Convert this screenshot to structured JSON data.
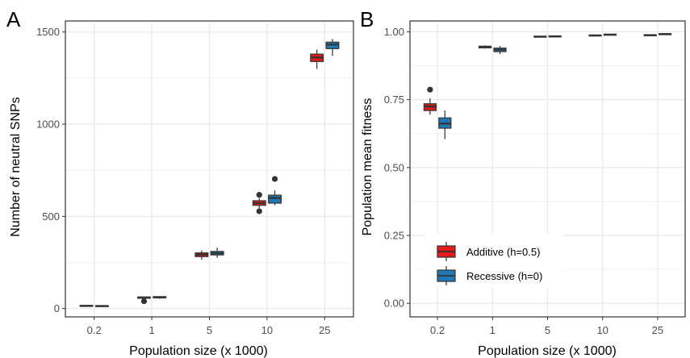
{
  "colors": {
    "additive": "#e41a1c",
    "recessive": "#1f78b4",
    "outline": "#333333",
    "grid": "#ebebeb",
    "panel_border": "#333333"
  },
  "chart_data": [
    {
      "type": "boxplot",
      "panel_label": "A",
      "xlabel": "Population size (x 1000)",
      "ylabel": "Number of neutral SNPs",
      "categories": [
        "0.2",
        "1",
        "5",
        "10",
        "25"
      ],
      "yticks": [
        0,
        500,
        1000,
        1500
      ],
      "ylim": [
        -45,
        1560
      ],
      "grid": true,
      "series": [
        {
          "key": "additive",
          "boxes": [
            {
              "whisker_low": 10,
              "q1": 13,
              "median": 15,
              "q3": 17,
              "whisker_high": 19,
              "outliers": []
            },
            {
              "whisker_low": 52,
              "q1": 56,
              "median": 60,
              "q3": 63,
              "whisker_high": 66,
              "outliers": [
                40
              ]
            },
            {
              "whisker_low": 265,
              "q1": 282,
              "median": 293,
              "q3": 302,
              "whisker_high": 315,
              "outliers": []
            },
            {
              "whisker_low": 545,
              "q1": 560,
              "median": 572,
              "q3": 585,
              "whisker_high": 600,
              "outliers": [
                528,
                617
              ]
            },
            {
              "whisker_low": 1300,
              "q1": 1340,
              "median": 1362,
              "q3": 1380,
              "whisker_high": 1405,
              "outliers": []
            }
          ]
        },
        {
          "key": "recessive",
          "boxes": [
            {
              "whisker_low": 10,
              "q1": 12,
              "median": 14,
              "q3": 16,
              "whisker_high": 18,
              "outliers": []
            },
            {
              "whisker_low": 53,
              "q1": 58,
              "median": 61,
              "q3": 65,
              "whisker_high": 68,
              "outliers": []
            },
            {
              "whisker_low": 275,
              "q1": 291,
              "median": 300,
              "q3": 310,
              "whisker_high": 330,
              "outliers": []
            },
            {
              "whisker_low": 560,
              "q1": 572,
              "median": 600,
              "q3": 615,
              "whisker_high": 640,
              "outliers": [
                703
              ]
            },
            {
              "whisker_low": 1370,
              "q1": 1410,
              "median": 1432,
              "q3": 1445,
              "whisker_high": 1462,
              "outliers": []
            }
          ]
        }
      ]
    },
    {
      "type": "boxplot",
      "panel_label": "B",
      "xlabel": "Population size (x 1000)",
      "ylabel": "Population mean fitness",
      "categories": [
        "0.2",
        "1",
        "5",
        "10",
        "25"
      ],
      "yticks": [
        "0.00",
        "0.25",
        "0.50",
        "0.75",
        "1.00"
      ],
      "ylim": [
        -0.05,
        1.04
      ],
      "grid": true,
      "legend": {
        "position": "bottom-left",
        "entries": [
          {
            "key": "additive",
            "label": "Additive (h=0.5)"
          },
          {
            "key": "recessive",
            "label": "Recessive (h=0)"
          }
        ]
      },
      "series": [
        {
          "key": "additive",
          "boxes": [
            {
              "whisker_low": 0.695,
              "q1": 0.71,
              "median": 0.725,
              "q3": 0.735,
              "whisker_high": 0.755,
              "outliers": [
                0.787
              ]
            },
            {
              "whisker_low": 0.938,
              "q1": 0.941,
              "median": 0.944,
              "q3": 0.947,
              "whisker_high": 0.95,
              "outliers": []
            },
            {
              "whisker_low": 0.979,
              "q1": 0.981,
              "median": 0.982,
              "q3": 0.984,
              "whisker_high": 0.986,
              "outliers": []
            },
            {
              "whisker_low": 0.984,
              "q1": 0.986,
              "median": 0.987,
              "q3": 0.988,
              "whisker_high": 0.99,
              "outliers": []
            },
            {
              "whisker_low": 0.986,
              "q1": 0.987,
              "median": 0.988,
              "q3": 0.989,
              "whisker_high": 0.991,
              "outliers": []
            }
          ]
        },
        {
          "key": "recessive",
          "boxes": [
            {
              "whisker_low": 0.605,
              "q1": 0.645,
              "median": 0.662,
              "q3": 0.683,
              "whisker_high": 0.71,
              "outliers": []
            },
            {
              "whisker_low": 0.918,
              "q1": 0.927,
              "median": 0.934,
              "q3": 0.94,
              "whisker_high": 0.948,
              "outliers": []
            },
            {
              "whisker_low": 0.98,
              "q1": 0.982,
              "median": 0.983,
              "q3": 0.985,
              "whisker_high": 0.987,
              "outliers": []
            },
            {
              "whisker_low": 0.987,
              "q1": 0.989,
              "median": 0.99,
              "q3": 0.991,
              "whisker_high": 0.993,
              "outliers": []
            },
            {
              "whisker_low": 0.989,
              "q1": 0.991,
              "median": 0.992,
              "q3": 0.993,
              "whisker_high": 0.995,
              "outliers": []
            }
          ]
        }
      ]
    }
  ]
}
